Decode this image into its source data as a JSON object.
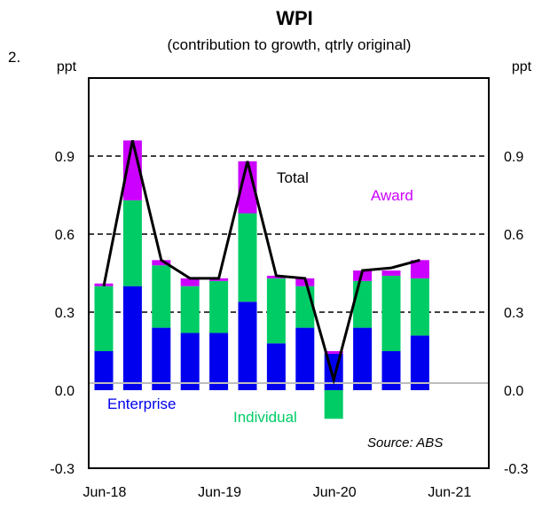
{
  "figure_number": "2.",
  "chart_data": {
    "type": "bar",
    "stacked": true,
    "title": "WPI",
    "subtitle": "(contribution to growth, qtrly original)",
    "ylabel_left": "ppt",
    "ylabel_right": "ppt",
    "ylim": [
      -0.3,
      1.2
    ],
    "yticks": [
      "-0.3",
      "0.0",
      "0.3",
      "0.6",
      "0.9"
    ],
    "ytick_values": [
      -0.3,
      0.0,
      0.3,
      0.6,
      0.9
    ],
    "xtick_labels": [
      "Jun-18",
      "Jun-19",
      "Jun-20",
      "Jun-21"
    ],
    "xtick_quarter_index": [
      0,
      4,
      8,
      12
    ],
    "categories": [
      "Jun-18",
      "Sep-18",
      "Dec-18",
      "Mar-19",
      "Jun-19",
      "Sep-19",
      "Dec-19",
      "Mar-20",
      "Jun-20",
      "Sep-20",
      "Dec-20",
      "Mar-21"
    ],
    "series": [
      {
        "name": "Enterprise",
        "color": "#0000ee",
        "values": [
          0.15,
          0.4,
          0.24,
          0.22,
          0.22,
          0.34,
          0.18,
          0.24,
          0.14,
          0.24,
          0.15,
          0.21
        ]
      },
      {
        "name": "Individual",
        "color": "#00cc66",
        "values": [
          0.25,
          0.33,
          0.24,
          0.18,
          0.2,
          0.34,
          0.25,
          0.16,
          -0.11,
          0.18,
          0.29,
          0.22
        ]
      },
      {
        "name": "Award",
        "color": "#cc00ff",
        "values": [
          0.01,
          0.23,
          0.02,
          0.03,
          0.01,
          0.2,
          0.01,
          0.03,
          0.01,
          0.04,
          0.02,
          0.07
        ]
      }
    ],
    "total": {
      "name": "Total",
      "color": "#000000",
      "values": [
        0.4,
        0.96,
        0.5,
        0.43,
        0.43,
        0.88,
        0.44,
        0.43,
        0.04,
        0.46,
        0.47,
        0.5
      ]
    },
    "labels": {
      "total": "Total",
      "award": "Award",
      "enterprise": "Enterprise",
      "individual": "Individual"
    },
    "source": "Source: ABS",
    "grid": "dashed horizontal at ticks"
  }
}
